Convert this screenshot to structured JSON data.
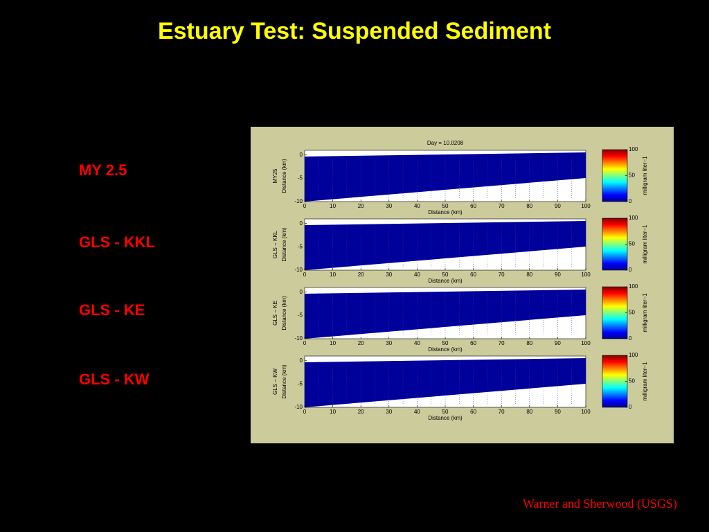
{
  "title": "Estuary Test: Suspended Sediment",
  "labels": [
    "MY 2.5",
    "GLS - KKL",
    "GLS - KE",
    "GLS - KW"
  ],
  "credit": "Warner and Sherwood (USGS)",
  "figure": {
    "title": "Day = 10.0208",
    "xlabel": "Distance (km)",
    "ylabel": "Distance (km)",
    "colorbar_label": "milligram liter−1",
    "panels": [
      "MY25",
      "GLS − KKL",
      "GLS − KE",
      "GLS − KW"
    ],
    "xlim": [
      0,
      100
    ],
    "xticks": [
      0,
      10,
      20,
      30,
      40,
      50,
      60,
      70,
      80,
      90,
      100
    ],
    "ylim": [
      -10,
      1
    ],
    "yticks": [
      0,
      -5,
      -10
    ],
    "clim": [
      0,
      100
    ],
    "cticks": [
      0,
      50,
      100
    ]
  }
}
